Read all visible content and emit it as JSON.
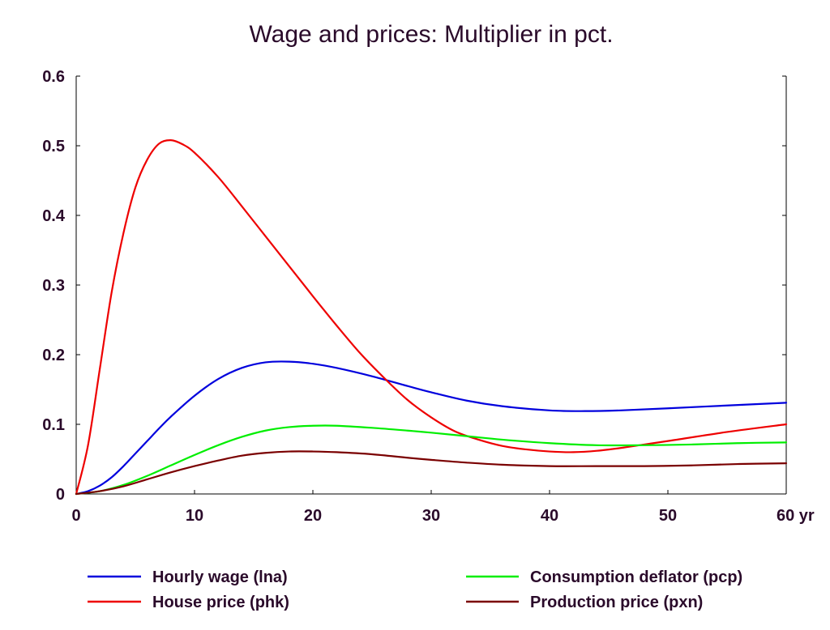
{
  "chart_data": {
    "type": "line",
    "title": "Wage and prices: Multiplier in pct.",
    "xlabel": "",
    "ylabel": "",
    "xlim": [
      0,
      60
    ],
    "ylim": [
      0,
      0.6
    ],
    "x_ticks": [
      0,
      10,
      20,
      30,
      40,
      50,
      60
    ],
    "x_tick_labels": [
      "0",
      "10",
      "20",
      "30",
      "40",
      "50",
      "60 yr"
    ],
    "y_ticks": [
      0,
      0.1,
      0.2,
      0.3,
      0.4,
      0.5,
      0.6
    ],
    "y_tick_labels": [
      "0",
      "0.1",
      "0.2",
      "0.3",
      "0.4",
      "0.5",
      "0.6"
    ],
    "grid": false,
    "legend_position": "bottom",
    "series": [
      {
        "name": "Hourly wage (lna)",
        "color": "#0000dd",
        "x": [
          0,
          1,
          2,
          3,
          4,
          5,
          6,
          7,
          8,
          10,
          12,
          14,
          16,
          18,
          20,
          22,
          25,
          28,
          30,
          33,
          36,
          40,
          43,
          46,
          50,
          55,
          60
        ],
        "y": [
          0,
          0.004,
          0.012,
          0.024,
          0.04,
          0.058,
          0.076,
          0.094,
          0.111,
          0.141,
          0.165,
          0.181,
          0.189,
          0.19,
          0.187,
          0.181,
          0.169,
          0.155,
          0.146,
          0.134,
          0.126,
          0.12,
          0.119,
          0.12,
          0.123,
          0.127,
          0.131
        ]
      },
      {
        "name": "House price (phk)",
        "color": "#ee0000",
        "x": [
          0,
          1,
          2,
          3,
          4,
          5,
          6,
          7,
          8,
          9,
          10,
          12,
          14,
          16,
          18,
          20,
          22,
          24,
          26,
          28,
          30,
          32,
          34,
          36,
          38,
          40,
          42,
          44,
          46,
          48,
          50,
          55,
          60
        ],
        "y": [
          0,
          0.07,
          0.18,
          0.29,
          0.375,
          0.44,
          0.48,
          0.503,
          0.508,
          0.502,
          0.49,
          0.455,
          0.413,
          0.37,
          0.327,
          0.284,
          0.242,
          0.202,
          0.167,
          0.135,
          0.11,
          0.09,
          0.078,
          0.069,
          0.064,
          0.061,
          0.06,
          0.062,
          0.066,
          0.071,
          0.076,
          0.089,
          0.1
        ]
      },
      {
        "name": "Consumption deflator (pcp)",
        "color": "#00ee00",
        "x": [
          0,
          2,
          4,
          6,
          8,
          10,
          12,
          14,
          16,
          18,
          20,
          22,
          25,
          28,
          30,
          33,
          36,
          40,
          44,
          48,
          52,
          56,
          60
        ],
        "y": [
          0,
          0.004,
          0.013,
          0.026,
          0.041,
          0.056,
          0.07,
          0.082,
          0.091,
          0.096,
          0.098,
          0.098,
          0.095,
          0.091,
          0.088,
          0.083,
          0.078,
          0.073,
          0.07,
          0.07,
          0.071,
          0.073,
          0.074
        ]
      },
      {
        "name": "Production price (pxn)",
        "color": "#7a0000",
        "x": [
          0,
          2,
          4,
          6,
          8,
          10,
          12,
          14,
          16,
          18,
          20,
          22,
          25,
          28,
          30,
          33,
          36,
          40,
          44,
          48,
          52,
          56,
          60
        ],
        "y": [
          0,
          0.004,
          0.011,
          0.021,
          0.031,
          0.04,
          0.048,
          0.055,
          0.059,
          0.061,
          0.061,
          0.06,
          0.057,
          0.052,
          0.049,
          0.045,
          0.042,
          0.04,
          0.04,
          0.04,
          0.041,
          0.043,
          0.044
        ]
      }
    ]
  }
}
